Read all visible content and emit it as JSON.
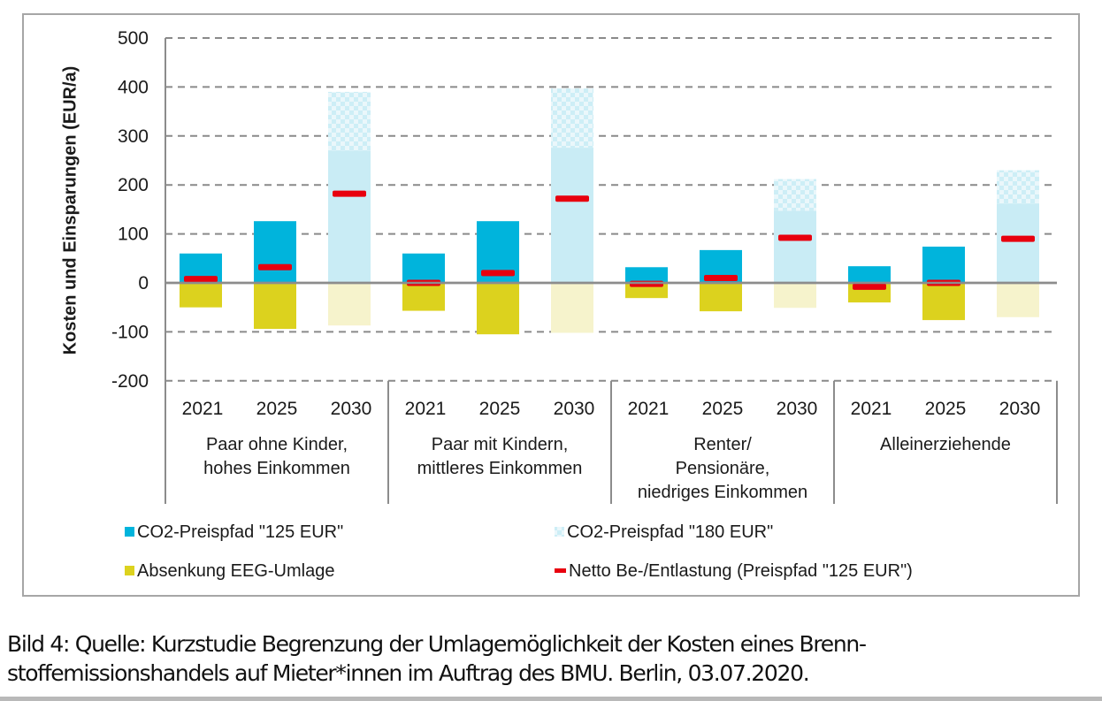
{
  "chart_data": {
    "type": "bar",
    "subtype": "grouped-stacked-with-markers",
    "ylabel": "Kosten und Einsparungen (EUR/a)",
    "xlabel": "",
    "ylim": [
      -200,
      500
    ],
    "yticks": [
      500,
      400,
      300,
      200,
      100,
      0,
      -100,
      -200
    ],
    "grid": "dashed-horizontal",
    "legend_position": "bottom",
    "groups": [
      {
        "label_lines": [
          "Paar ohne Kinder,",
          "hohes Einkommen"
        ],
        "categories": [
          "2021",
          "2025",
          "2030"
        ]
      },
      {
        "label_lines": [
          "Paar mit Kindern,",
          "mittleres Einkommen"
        ],
        "categories": [
          "2021",
          "2025",
          "2030"
        ]
      },
      {
        "label_lines": [
          "Renter/",
          "Pensionäre,",
          "niedriges Einkommen"
        ],
        "categories": [
          "2021",
          "2025",
          "2030"
        ]
      },
      {
        "label_lines": [
          "Alleinerziehende"
        ],
        "categories": [
          "2021",
          "2025",
          "2030"
        ]
      }
    ],
    "series": [
      {
        "name": "CO2-Preispfad \"125 EUR\"",
        "color": "#00b4dc",
        "values": [
          [
            60,
            126,
            270
          ],
          [
            60,
            126,
            276
          ],
          [
            32,
            67,
            147
          ],
          [
            34,
            74,
            162
          ]
        ]
      },
      {
        "name": "CO2-Preispfad \"180 EUR\"",
        "color": "#c9ecf5",
        "values": [
          [
            60,
            126,
            390
          ],
          [
            60,
            126,
            397
          ],
          [
            32,
            67,
            212
          ],
          [
            34,
            74,
            230
          ]
        ]
      },
      {
        "name": "Absenkung EEG-Umlage",
        "color": "#dcd21e",
        "values": [
          [
            -50,
            -94,
            -87
          ],
          [
            -57,
            -105,
            -102
          ],
          [
            -31,
            -58,
            -51
          ],
          [
            -40,
            -76,
            -70
          ]
        ]
      },
      {
        "name": "Netto Be-/Entlastung (Preispfad \"125 EUR\")",
        "color": "#e8000e",
        "values": [
          [
            8,
            32,
            182
          ],
          [
            0,
            20,
            172
          ],
          [
            -2,
            10,
            92
          ],
          [
            -8,
            0,
            90
          ]
        ]
      }
    ],
    "notes": "2030 bars drawn in faded colors; the 180 EUR path extension is hatched/checkered above the 125 EUR value"
  },
  "legend": {
    "items": [
      "CO2-Preispfad \"125 EUR\"",
      "CO2-Preispfad \"180 EUR\"",
      "Absenkung EEG-Umlage",
      "Netto Be-/Entlastung (Preispfad \"125 EUR\")"
    ]
  },
  "caption": {
    "line1": "Bild 4: Quelle: Kurzstudie Begrenzung der Umlagemöglichkeit der Kosten eines Brenn-",
    "line2": "stoffemissionshandels auf Mieter*innen im Auftrag des BMU. Berlin, 03.07.2020."
  }
}
